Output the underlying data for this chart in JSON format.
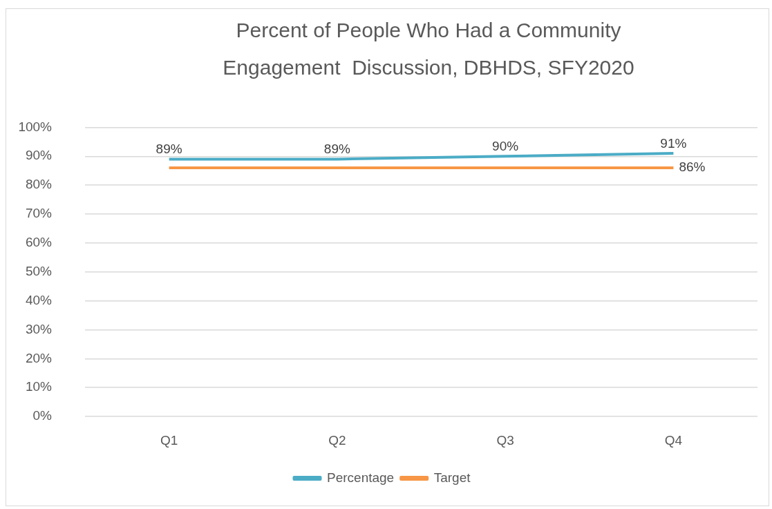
{
  "chart_data": {
    "type": "line",
    "title": "Percent of People Who Had a Community Engagement  Discussion, DBHDS, SFY2020",
    "categories": [
      "Q1",
      "Q2",
      "Q3",
      "Q4"
    ],
    "series": [
      {
        "name": "Percentage",
        "color": "#4bacc6",
        "values": [
          89,
          89,
          90,
          91
        ],
        "value_labels": [
          "89%",
          "89%",
          "90%",
          "91%"
        ]
      },
      {
        "name": "Target",
        "color": "#f79646",
        "values": [
          86,
          86,
          86,
          86
        ],
        "value_labels": [
          null,
          null,
          null,
          "86%"
        ]
      }
    ],
    "ylim": [
      0,
      100
    ],
    "yticks": [
      {
        "value": 0,
        "label": "0%"
      },
      {
        "value": 10,
        "label": "10%"
      },
      {
        "value": 20,
        "label": "20%"
      },
      {
        "value": 30,
        "label": "30%"
      },
      {
        "value": 40,
        "label": "40%"
      },
      {
        "value": 50,
        "label": "50%"
      },
      {
        "value": 60,
        "label": "60%"
      },
      {
        "value": 70,
        "label": "70%"
      },
      {
        "value": 80,
        "label": "80%"
      },
      {
        "value": 90,
        "label": "90%"
      },
      {
        "value": 100,
        "label": "100%"
      }
    ],
    "grid": "y",
    "legend": "bottom",
    "marker": "none",
    "line_style": "solid"
  }
}
